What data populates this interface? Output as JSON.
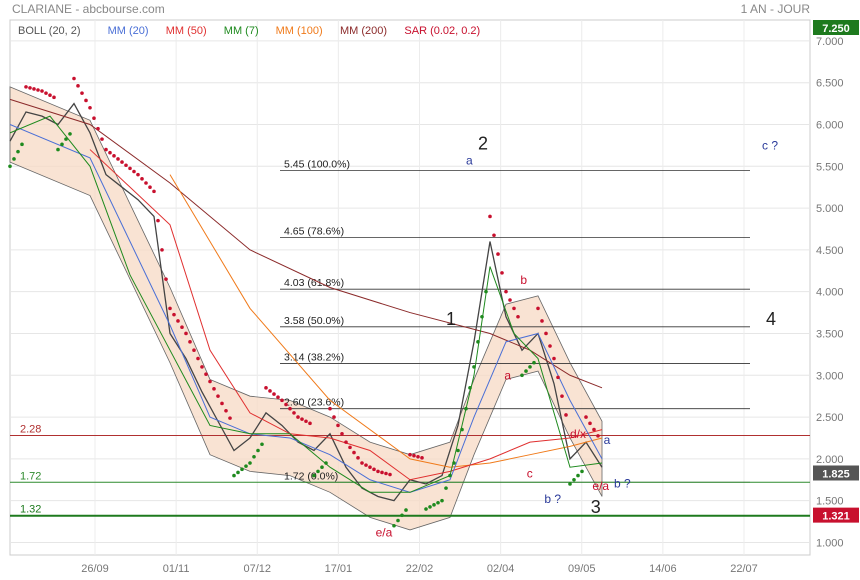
{
  "header": {
    "title": "CLARIANE - abcbourse.com",
    "period": "1 AN - JOUR"
  },
  "legend": [
    {
      "label": "BOLL (20, 2)",
      "color": "#555555"
    },
    {
      "label": "MM (20)",
      "color": "#4a6fd6"
    },
    {
      "label": "MM (50)",
      "color": "#e03030"
    },
    {
      "label": "MM (7)",
      "color": "#1e8a1e"
    },
    {
      "label": "MM (100)",
      "color": "#f07a1a"
    },
    {
      "label": "MM (200)",
      "color": "#8b2a2a"
    },
    {
      "label": "SAR (0.02, 0.2)",
      "color": "#c8102e"
    }
  ],
  "price_tags": [
    {
      "value": "7.250",
      "y": 7.25,
      "color": "#1e7a1e"
    },
    {
      "value": "1.825",
      "y": 1.825,
      "color": "#555555"
    },
    {
      "value": "1.321",
      "y": 1.321,
      "color": "#c8102e"
    }
  ],
  "chart_data": {
    "type": "line",
    "title": "CLARIANE",
    "y_axis": {
      "ylim": [
        0.85,
        7.25
      ],
      "ticks": [
        "7.000",
        "6.500",
        "6.000",
        "5.500",
        "5.000",
        "4.500",
        "4.000",
        "3.500",
        "3.000",
        "2.500",
        "2.000",
        "1.500",
        "1.000"
      ]
    },
    "x_axis": {
      "ticks": [
        "26/09",
        "01/11",
        "07/12",
        "17/01",
        "22/02",
        "02/04",
        "09/05",
        "14/06",
        "22/07"
      ]
    },
    "fibonacci_levels": [
      {
        "label": "5.45  (100.0%)",
        "y": 5.45
      },
      {
        "label": "4.65  (78.6%)",
        "y": 4.65
      },
      {
        "label": "4.03  (61.8%)",
        "y": 4.03
      },
      {
        "label": "3.58  (50.0%)",
        "y": 3.58
      },
      {
        "label": "3.14  (38.2%)",
        "y": 3.14
      },
      {
        "label": "2.60  (23.6%)",
        "y": 2.6
      },
      {
        "label": "1.72  (0.0%)",
        "y": 1.72
      }
    ],
    "horizontal_lines": [
      {
        "label": "2.28",
        "y": 2.28,
        "color": "#b03030"
      },
      {
        "label": "1.72",
        "y": 1.72,
        "color": "#2e8b2e"
      },
      {
        "label": "1.32",
        "y": 1.32,
        "color": "#1e7a1e"
      }
    ],
    "annotations": [
      {
        "text": "2",
        "x": 0.585,
        "y": 5.7,
        "color": "#222222"
      },
      {
        "text": "a",
        "x": 0.57,
        "y": 5.52,
        "color": "#2a3a9a"
      },
      {
        "text": "c ?",
        "x": 0.94,
        "y": 5.7,
        "color": "#2a3a9a"
      },
      {
        "text": "1",
        "x": 0.545,
        "y": 3.6,
        "color": "#222222"
      },
      {
        "text": "4",
        "x": 0.945,
        "y": 3.6,
        "color": "#222222"
      },
      {
        "text": "b",
        "x": 0.638,
        "y": 4.09,
        "color": "#c8102e"
      },
      {
        "text": "a",
        "x": 0.618,
        "y": 2.95,
        "color": "#c8102e"
      },
      {
        "text": "d/x",
        "x": 0.7,
        "y": 2.25,
        "color": "#c8102e"
      },
      {
        "text": "a",
        "x": 0.742,
        "y": 2.18,
        "color": "#2a3a9a"
      },
      {
        "text": "c",
        "x": 0.646,
        "y": 1.78,
        "color": "#c8102e"
      },
      {
        "text": "e/a",
        "x": 0.728,
        "y": 1.63,
        "color": "#c8102e"
      },
      {
        "text": "b ?",
        "x": 0.755,
        "y": 1.66,
        "color": "#2a3a9a"
      },
      {
        "text": "b ?",
        "x": 0.668,
        "y": 1.47,
        "color": "#2a3a9a"
      },
      {
        "text": "3",
        "x": 0.726,
        "y": 1.35,
        "color": "#222222"
      },
      {
        "text": "e/a",
        "x": 0.457,
        "y": 1.07,
        "color": "#c8102e"
      }
    ],
    "series": [
      {
        "name": "close",
        "color": "#444444",
        "x": [
          0.0,
          0.02,
          0.04,
          0.06,
          0.08,
          0.1,
          0.12,
          0.14,
          0.16,
          0.18,
          0.2,
          0.22,
          0.24,
          0.26,
          0.28,
          0.3,
          0.32,
          0.34,
          0.36,
          0.38,
          0.4,
          0.42,
          0.44,
          0.46,
          0.48,
          0.5,
          0.52,
          0.54,
          0.56,
          0.58,
          0.6,
          0.62,
          0.64,
          0.66,
          0.68,
          0.7,
          0.72,
          0.74
        ],
        "y": [
          5.8,
          6.15,
          6.1,
          6.0,
          6.25,
          5.9,
          5.4,
          5.25,
          5.1,
          4.9,
          3.5,
          3.2,
          2.8,
          2.45,
          2.1,
          2.25,
          2.55,
          2.4,
          2.2,
          2.1,
          2.3,
          1.9,
          1.65,
          1.55,
          1.5,
          1.75,
          1.7,
          1.8,
          2.4,
          3.4,
          4.6,
          3.7,
          3.3,
          3.5,
          2.9,
          2.0,
          2.2,
          1.9
        ]
      },
      {
        "name": "MM (200)",
        "color": "#8b2a2a",
        "x": [
          0.0,
          0.1,
          0.2,
          0.3,
          0.4,
          0.5,
          0.6,
          0.65,
          0.7,
          0.74
        ],
        "y": [
          6.3,
          6.0,
          5.3,
          4.5,
          4.05,
          3.75,
          3.5,
          3.3,
          3.0,
          2.85
        ]
      },
      {
        "name": "MM (100)",
        "color": "#f07a1a",
        "x": [
          0.2,
          0.3,
          0.4,
          0.5,
          0.55,
          0.6,
          0.65,
          0.7,
          0.74
        ],
        "y": [
          5.4,
          3.8,
          2.7,
          2.0,
          1.9,
          1.95,
          2.05,
          2.15,
          2.25
        ]
      },
      {
        "name": "MM (50)",
        "color": "#e03030",
        "x": [
          0.1,
          0.2,
          0.25,
          0.3,
          0.35,
          0.4,
          0.45,
          0.5,
          0.55,
          0.6,
          0.65,
          0.7,
          0.74
        ],
        "y": [
          5.7,
          4.8,
          3.3,
          2.55,
          2.3,
          2.25,
          2.1,
          1.75,
          1.85,
          2.0,
          2.2,
          2.25,
          2.35
        ]
      },
      {
        "name": "MM (20)",
        "color": "#4a6fd6",
        "x": [
          0.0,
          0.1,
          0.15,
          0.2,
          0.25,
          0.3,
          0.35,
          0.4,
          0.45,
          0.5,
          0.55,
          0.58,
          0.62,
          0.66,
          0.7,
          0.74
        ],
        "y": [
          6.0,
          5.6,
          4.6,
          3.6,
          2.5,
          2.3,
          2.25,
          2.05,
          1.75,
          1.6,
          1.75,
          2.5,
          3.4,
          3.5,
          2.7,
          2.0
        ]
      },
      {
        "name": "MM (7)",
        "color": "#1e8a1e",
        "x": [
          0.0,
          0.05,
          0.1,
          0.15,
          0.2,
          0.25,
          0.3,
          0.35,
          0.4,
          0.45,
          0.5,
          0.55,
          0.58,
          0.6,
          0.63,
          0.66,
          0.7,
          0.74
        ],
        "y": [
          5.9,
          6.1,
          5.5,
          4.2,
          3.3,
          2.4,
          2.3,
          2.3,
          1.9,
          1.6,
          1.6,
          1.8,
          3.0,
          4.3,
          3.5,
          3.2,
          1.9,
          1.95
        ]
      }
    ],
    "grid": true
  }
}
